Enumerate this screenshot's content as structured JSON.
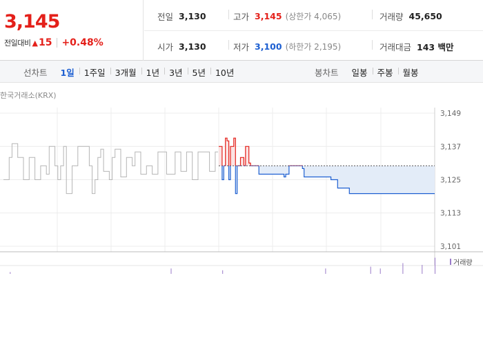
{
  "quote": {
    "price": "3,145",
    "change_label": "전일대비",
    "change_arrow": "▲",
    "change_value": "15",
    "change_pct": "+0.48%",
    "prev_close": {
      "label": "전일",
      "value": "3,130"
    },
    "high": {
      "label": "고가",
      "value": "3,145",
      "limit_label": "(상한가 4,065)"
    },
    "volume": {
      "label": "거래량",
      "value": "45,650"
    },
    "open": {
      "label": "시가",
      "value": "3,130"
    },
    "low": {
      "label": "저가",
      "value": "3,100",
      "limit_label": "(하한가 2,195)"
    },
    "turnover": {
      "label": "거래대금",
      "value": "143 백만"
    }
  },
  "toolbar": {
    "line_chart_label": "선차트",
    "periods": [
      "1일",
      "1주일",
      "3개월",
      "1년",
      "3년",
      "5년",
      "10년"
    ],
    "active_period": "1일",
    "candle_chart_label": "봉차트",
    "candle_periods": [
      "일봉",
      "주봉",
      "월봉"
    ]
  },
  "chart_source": "한국거래소(KRX)",
  "volume_legend": "거래량",
  "colors": {
    "up": "#e4201a",
    "down": "#1d5fd1",
    "prev_day": "#b5b5b5",
    "volume": "#9a7ac9"
  },
  "chart_data": {
    "type": "line",
    "ylim": [
      3099,
      3151
    ],
    "yticks": [
      3101,
      3113,
      3125,
      3137,
      3149
    ],
    "baseline": 3130,
    "series": [
      {
        "values": [
          3125,
          3125,
          3133,
          3138,
          3138,
          3133,
          3133,
          3125,
          3125,
          3133,
          3133,
          3125,
          3125,
          3130,
          3130,
          3127,
          3137,
          3137,
          3130,
          3125,
          3130,
          3137,
          3120,
          3120,
          3130,
          3130,
          3137,
          3137,
          3137,
          3137,
          3130,
          3120,
          3125,
          3133,
          3136,
          3128,
          3128,
          3125,
          3133,
          3136,
          3136,
          3126,
          3126,
          3133,
          3133,
          3130,
          3135,
          3135,
          3127,
          3127,
          3130,
          3130,
          3127,
          3127,
          3135,
          3135,
          3135,
          3127,
          3127,
          3127,
          3135,
          3135,
          3128,
          3128,
          3135,
          3135,
          3125,
          3125,
          3135,
          3135,
          3135,
          3135,
          3128,
          3128,
          3135,
          3135
        ]
      },
      {
        "values": [
          3137,
          3137,
          3125,
          3130,
          3140,
          3139,
          3125,
          3137,
          3137,
          3140,
          3120,
          3130,
          3130,
          3133,
          3133,
          3130,
          3137,
          3137,
          3131,
          3130,
          3130,
          3130,
          3130,
          3130,
          3127,
          3127,
          3127,
          3127,
          3127,
          3127,
          3127,
          3127,
          3127,
          3127,
          3127,
          3127,
          3127,
          3127,
          3127,
          3126,
          3127,
          3127,
          3130,
          3130,
          3130,
          3130,
          3130,
          3130,
          3130,
          3130,
          3129,
          3126,
          3126,
          3126,
          3126,
          3126,
          3126,
          3126,
          3126,
          3126,
          3126,
          3126,
          3126,
          3126,
          3126,
          3126,
          3126,
          3125,
          3125,
          3125,
          3125,
          3122,
          3122,
          3122,
          3122,
          3122,
          3122,
          3122,
          3120,
          3120,
          3120,
          3120,
          3120,
          3120,
          3120,
          3120,
          3120,
          3120,
          3120,
          3120,
          3120,
          3120,
          3120,
          3120,
          3120,
          3120,
          3120,
          3120,
          3120,
          3120,
          3120,
          3120,
          3120,
          3120,
          3120,
          3120,
          3120,
          3120,
          3120,
          3120,
          3120,
          3120,
          3120,
          3120,
          3120,
          3120,
          3120,
          3120,
          3120,
          3120,
          3120,
          3120,
          3120,
          3120,
          3120,
          3120,
          3120,
          3120,
          3120,
          3120
        ]
      }
    ],
    "volume": [
      0,
      0,
      1,
      0,
      0,
      0,
      0,
      0,
      0,
      0,
      0,
      0,
      0,
      0,
      0,
      0,
      0,
      0,
      0,
      0,
      0,
      0,
      0,
      0,
      0,
      0,
      0,
      0,
      0,
      0,
      0,
      0,
      0,
      0,
      0,
      0,
      0,
      0,
      0,
      0,
      0,
      0,
      0,
      0,
      0,
      0,
      0,
      0,
      0,
      0,
      0,
      0,
      3,
      0,
      0,
      0,
      0,
      0,
      0,
      0,
      0,
      0,
      0,
      0,
      0,
      0,
      0,
      0,
      2,
      0,
      0,
      0,
      0,
      0,
      0,
      0,
      0,
      0,
      0,
      0,
      0,
      0,
      0,
      0,
      0,
      0,
      0,
      0,
      0,
      0,
      0,
      0,
      0,
      0,
      0,
      0,
      0,
      0,
      0,
      0,
      3,
      0,
      0,
      0,
      0,
      0,
      0,
      0,
      0,
      0,
      0,
      0,
      0,
      0,
      4,
      0,
      0,
      3,
      0,
      0,
      0,
      0,
      0,
      0,
      6,
      0,
      0,
      0,
      0,
      0,
      5,
      0,
      0,
      0,
      9
    ]
  }
}
